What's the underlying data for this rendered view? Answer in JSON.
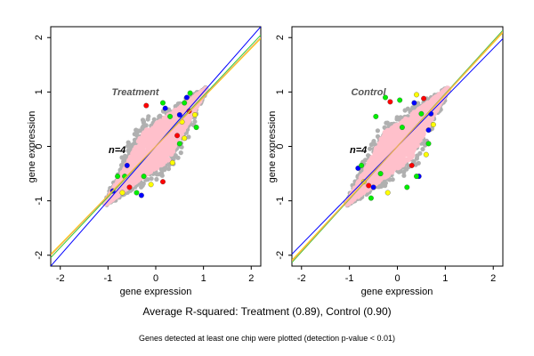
{
  "chart_data": [
    {
      "type": "scatter",
      "title": "Treatment",
      "n_label": "n=4",
      "xlabel": "gene expression",
      "ylabel": "gene expression",
      "xlim": [
        -2.2,
        2.2
      ],
      "ylim": [
        -2.2,
        2.2
      ],
      "xticks": [
        -2,
        -1,
        0,
        1,
        2
      ],
      "yticks": [
        -2,
        -1,
        0,
        1,
        2
      ],
      "grid": false,
      "lines": [
        {
          "color": "#0000ff",
          "slope": 1.0,
          "intercept": 0.0
        },
        {
          "color": "#32cd32",
          "slope": 0.93,
          "intercept": 0.0
        },
        {
          "color": "#ffd700",
          "slope": 0.9,
          "intercept": 0.0
        },
        {
          "color": "#f4a460",
          "slope": 0.91,
          "intercept": 0.0
        }
      ],
      "points": [
        {
          "x": -0.9,
          "y": -0.82,
          "color": "#0000ff"
        },
        {
          "x": 0.5,
          "y": 0.58,
          "color": "#0000ff"
        },
        {
          "x": 0.65,
          "y": 0.9,
          "color": "#0000ff"
        },
        {
          "x": -0.6,
          "y": -0.35,
          "color": "#0000ff"
        },
        {
          "x": 0.2,
          "y": 0.7,
          "color": "#0000ff"
        },
        {
          "x": -0.3,
          "y": -0.9,
          "color": "#0000ff"
        },
        {
          "x": 0.7,
          "y": 0.65,
          "color": "#ff0000"
        },
        {
          "x": 0.15,
          "y": -0.65,
          "color": "#ff0000"
        },
        {
          "x": -0.55,
          "y": -0.75,
          "color": "#ff0000"
        },
        {
          "x": 0.45,
          "y": 0.2,
          "color": "#ff0000"
        },
        {
          "x": -0.2,
          "y": 0.75,
          "color": "#ff0000"
        },
        {
          "x": 0.55,
          "y": 0.45,
          "color": "#ffff00"
        },
        {
          "x": 0.82,
          "y": 0.58,
          "color": "#ffff00"
        },
        {
          "x": -0.7,
          "y": -0.85,
          "color": "#ffff00"
        },
        {
          "x": 0.35,
          "y": -0.3,
          "color": "#ffff00"
        },
        {
          "x": -0.1,
          "y": -0.7,
          "color": "#ffff00"
        },
        {
          "x": 0.6,
          "y": 0.15,
          "color": "#ffff00"
        },
        {
          "x": 0.72,
          "y": 0.98,
          "color": "#00ee00"
        },
        {
          "x": 0.6,
          "y": 0.8,
          "color": "#00ee00"
        },
        {
          "x": -0.65,
          "y": -0.55,
          "color": "#00ee00"
        },
        {
          "x": 0.5,
          "y": 0.05,
          "color": "#00ee00"
        },
        {
          "x": -0.25,
          "y": -0.55,
          "color": "#00ee00"
        },
        {
          "x": 0.3,
          "y": 0.55,
          "color": "#00ee00"
        },
        {
          "x": 0.85,
          "y": 0.35,
          "color": "#00ee00"
        },
        {
          "x": -0.8,
          "y": -0.55,
          "color": "#00ee00"
        },
        {
          "x": 0.15,
          "y": 0.8,
          "color": "#00ee00"
        },
        {
          "x": -0.4,
          "y": -0.85,
          "color": "#00ee00"
        }
      ]
    },
    {
      "type": "scatter",
      "title": "Control",
      "n_label": "n=4",
      "xlabel": "gene expression",
      "ylabel": "gene expression",
      "xlim": [
        -2.2,
        2.2
      ],
      "ylim": [
        -2.2,
        2.2
      ],
      "xticks": [
        -2,
        -1,
        0,
        1,
        2
      ],
      "yticks": [
        -2,
        -1,
        0,
        1,
        2
      ],
      "grid": false,
      "lines": [
        {
          "color": "#0000ff",
          "slope": 0.9,
          "intercept": 0.0
        },
        {
          "color": "#32cd32",
          "slope": 0.97,
          "intercept": 0.0
        },
        {
          "color": "#ffd700",
          "slope": 0.95,
          "intercept": 0.0
        },
        {
          "color": "#f4a460",
          "slope": 0.96,
          "intercept": 0.0
        }
      ],
      "points": [
        {
          "x": -0.82,
          "y": -0.4,
          "color": "#0000ff"
        },
        {
          "x": 0.35,
          "y": 0.8,
          "color": "#0000ff"
        },
        {
          "x": 0.65,
          "y": 0.3,
          "color": "#0000ff"
        },
        {
          "x": 0.45,
          "y": -0.55,
          "color": "#0000ff"
        },
        {
          "x": -0.5,
          "y": -0.75,
          "color": "#0000ff"
        },
        {
          "x": 0.7,
          "y": 0.6,
          "color": "#0000ff"
        },
        {
          "x": -0.15,
          "y": 0.82,
          "color": "#ff0000"
        },
        {
          "x": 0.55,
          "y": 0.88,
          "color": "#ff0000"
        },
        {
          "x": -0.6,
          "y": -0.72,
          "color": "#ff0000"
        },
        {
          "x": 0.3,
          "y": -0.35,
          "color": "#ff0000"
        },
        {
          "x": -0.7,
          "y": -0.65,
          "color": "#ffff00"
        },
        {
          "x": 0.6,
          "y": -0.15,
          "color": "#ffff00"
        },
        {
          "x": 0.4,
          "y": 0.95,
          "color": "#ffff00"
        },
        {
          "x": -0.2,
          "y": -0.85,
          "color": "#ffff00"
        },
        {
          "x": 0.75,
          "y": 0.4,
          "color": "#ffff00"
        },
        {
          "x": -0.25,
          "y": 0.9,
          "color": "#00ee00"
        },
        {
          "x": -0.45,
          "y": 0.55,
          "color": "#00ee00"
        },
        {
          "x": -0.75,
          "y": -0.35,
          "color": "#00ee00"
        },
        {
          "x": 0.4,
          "y": -0.55,
          "color": "#00ee00"
        },
        {
          "x": 0.5,
          "y": 0.6,
          "color": "#00ee00"
        },
        {
          "x": -0.55,
          "y": -0.95,
          "color": "#00ee00"
        },
        {
          "x": 0.05,
          "y": 0.85,
          "color": "#00ee00"
        },
        {
          "x": 0.2,
          "y": -0.75,
          "color": "#00ee00"
        },
        {
          "x": 0.65,
          "y": 0.05,
          "color": "#00ee00"
        },
        {
          "x": -0.35,
          "y": -0.5,
          "color": "#00ee00"
        },
        {
          "x": 0.1,
          "y": 0.35,
          "color": "#00ee00"
        }
      ]
    }
  ],
  "cloud_colors": {
    "core": "#ffc0cb",
    "edge": "#b0b0b0"
  },
  "captions": {
    "r_squared": "Average R-squared: Treatment (0.89), Control (0.90)",
    "note": "Genes detected at least one chip were plotted (detection p-value < 0.01)"
  }
}
